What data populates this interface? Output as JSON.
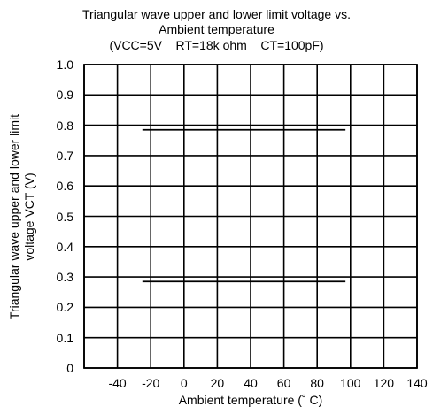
{
  "chart_data": {
    "type": "line",
    "title": [
      "Triangular wave upper and lower limit voltage vs.",
      "Ambient temperature",
      "(VCC=5V    RT=18k ohm    CT=100pF)"
    ],
    "xlabel": "Ambient temperature (˚ C)",
    "ylabel": [
      "Triangular wave upper and lower limit",
      "voltage VCT (V)"
    ],
    "xlim": [
      -60,
      140
    ],
    "ylim": [
      0,
      1.0
    ],
    "x_ticks": [
      -60,
      -40,
      -20,
      0,
      20,
      40,
      60,
      80,
      100,
      120,
      140
    ],
    "x_tick_labels": [
      "",
      "-40",
      "-20",
      "0",
      "20",
      "40",
      "60",
      "80",
      "100",
      "120",
      "140"
    ],
    "y_ticks": [
      0,
      0.1,
      0.2,
      0.3,
      0.4,
      0.5,
      0.6,
      0.7,
      0.8,
      0.9,
      1.0
    ],
    "y_tick_labels": [
      "0",
      "0.1",
      "0.2",
      "0.3",
      "0.4",
      "0.5",
      "0.6",
      "0.7",
      "0.8",
      "0.9",
      "1.0"
    ],
    "grid": true,
    "series": [
      {
        "x": [
          -25,
          97
        ],
        "y": [
          0.785,
          0.785
        ]
      },
      {
        "x": [
          -25,
          97
        ],
        "y": [
          0.285,
          0.285
        ]
      }
    ],
    "colors": {
      "line": "#000000",
      "grid": "#000000"
    }
  }
}
